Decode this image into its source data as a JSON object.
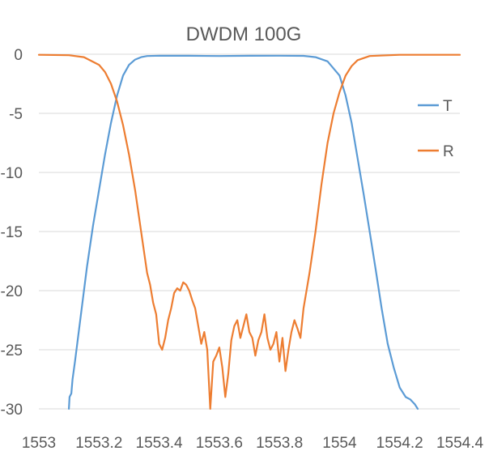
{
  "chart_data": {
    "type": "line",
    "title": "DWDM 100G",
    "xlabel": "",
    "ylabel": "",
    "xlim": [
      1553,
      1554.4
    ],
    "ylim": [
      -30,
      0
    ],
    "x_ticks": [
      "1553",
      "1553.2",
      "1553.4",
      "1553.6",
      "1553.8",
      "1554",
      "1554.2",
      "1554.4"
    ],
    "y_ticks": [
      "0",
      "-5",
      "-10",
      "-15",
      "-20",
      "-25",
      "-30"
    ],
    "grid": "horizontal",
    "legend_position": "right",
    "series": [
      {
        "name": "T",
        "color": "#5b9bd5",
        "points": [
          [
            1553.1,
            -30
          ],
          [
            1553.102,
            -29
          ],
          [
            1553.108,
            -28.7
          ],
          [
            1553.112,
            -27.5
          ],
          [
            1553.12,
            -26
          ],
          [
            1553.14,
            -22
          ],
          [
            1553.16,
            -18
          ],
          [
            1553.18,
            -14.5
          ],
          [
            1553.2,
            -11.5
          ],
          [
            1553.22,
            -8.5
          ],
          [
            1553.24,
            -5.8
          ],
          [
            1553.26,
            -3.5
          ],
          [
            1553.28,
            -1.8
          ],
          [
            1553.3,
            -0.9
          ],
          [
            1553.32,
            -0.45
          ],
          [
            1553.34,
            -0.25
          ],
          [
            1553.36,
            -0.15
          ],
          [
            1553.4,
            -0.12
          ],
          [
            1553.5,
            -0.13
          ],
          [
            1553.6,
            -0.15
          ],
          [
            1553.7,
            -0.13
          ],
          [
            1553.8,
            -0.12
          ],
          [
            1553.88,
            -0.14
          ],
          [
            1553.92,
            -0.25
          ],
          [
            1553.96,
            -0.6
          ],
          [
            1554.0,
            -1.8
          ],
          [
            1554.02,
            -3.5
          ],
          [
            1554.04,
            -5.8
          ],
          [
            1554.06,
            -8.8
          ],
          [
            1554.08,
            -11.8
          ],
          [
            1554.1,
            -15
          ],
          [
            1554.12,
            -18.2
          ],
          [
            1554.14,
            -21.5
          ],
          [
            1554.16,
            -24.5
          ],
          [
            1554.18,
            -26.5
          ],
          [
            1554.2,
            -28.2
          ],
          [
            1554.22,
            -29
          ],
          [
            1554.235,
            -29.2
          ],
          [
            1554.25,
            -29.6
          ],
          [
            1554.26,
            -30
          ]
        ]
      },
      {
        "name": "R",
        "color": "#ed7d31",
        "points": [
          [
            1553,
            -0.05
          ],
          [
            1553.1,
            -0.08
          ],
          [
            1553.15,
            -0.25
          ],
          [
            1553.2,
            -0.9
          ],
          [
            1553.22,
            -1.5
          ],
          [
            1553.24,
            -2.5
          ],
          [
            1553.26,
            -4
          ],
          [
            1553.28,
            -6
          ],
          [
            1553.3,
            -8.5
          ],
          [
            1553.32,
            -11.5
          ],
          [
            1553.34,
            -15
          ],
          [
            1553.36,
            -18.5
          ],
          [
            1553.37,
            -19.5
          ],
          [
            1553.38,
            -21
          ],
          [
            1553.39,
            -22
          ],
          [
            1553.4,
            -24.5
          ],
          [
            1553.41,
            -25
          ],
          [
            1553.42,
            -24
          ],
          [
            1553.43,
            -22.5
          ],
          [
            1553.44,
            -21.5
          ],
          [
            1553.45,
            -20.2
          ],
          [
            1553.46,
            -19.8
          ],
          [
            1553.47,
            -20
          ],
          [
            1553.48,
            -19.3
          ],
          [
            1553.49,
            -19.5
          ],
          [
            1553.5,
            -20
          ],
          [
            1553.51,
            -20.8
          ],
          [
            1553.52,
            -21.5
          ],
          [
            1553.53,
            -23
          ],
          [
            1553.54,
            -24.5
          ],
          [
            1553.55,
            -23.5
          ],
          [
            1553.56,
            -25
          ],
          [
            1553.57,
            -30
          ],
          [
            1553.58,
            -26
          ],
          [
            1553.59,
            -25.5
          ],
          [
            1553.6,
            -24.8
          ],
          [
            1553.61,
            -26.5
          ],
          [
            1553.62,
            -29
          ],
          [
            1553.63,
            -27
          ],
          [
            1553.64,
            -24.2
          ],
          [
            1553.65,
            -23
          ],
          [
            1553.66,
            -22.5
          ],
          [
            1553.67,
            -24
          ],
          [
            1553.68,
            -23
          ],
          [
            1553.69,
            -22
          ],
          [
            1553.7,
            -23.5
          ],
          [
            1553.71,
            -24
          ],
          [
            1553.72,
            -25.5
          ],
          [
            1553.73,
            -24.2
          ],
          [
            1553.74,
            -23.5
          ],
          [
            1553.75,
            -22
          ],
          [
            1553.76,
            -24
          ],
          [
            1553.77,
            -25
          ],
          [
            1553.78,
            -24.5
          ],
          [
            1553.79,
            -23.5
          ],
          [
            1553.8,
            -26
          ],
          [
            1553.81,
            -24
          ],
          [
            1553.82,
            -26.8
          ],
          [
            1553.83,
            -25
          ],
          [
            1553.84,
            -23.5
          ],
          [
            1553.85,
            -22.5
          ],
          [
            1553.86,
            -23.2
          ],
          [
            1553.87,
            -24
          ],
          [
            1553.88,
            -21.5
          ],
          [
            1553.89,
            -20
          ],
          [
            1553.9,
            -18.5
          ],
          [
            1553.92,
            -15
          ],
          [
            1553.94,
            -11
          ],
          [
            1553.96,
            -7.5
          ],
          [
            1553.98,
            -5
          ],
          [
            1554.0,
            -3.2
          ],
          [
            1554.02,
            -1.8
          ],
          [
            1554.04,
            -1
          ],
          [
            1554.06,
            -0.5
          ],
          [
            1554.1,
            -0.15
          ],
          [
            1554.2,
            -0.05
          ],
          [
            1554.4,
            -0.05
          ]
        ]
      }
    ]
  }
}
